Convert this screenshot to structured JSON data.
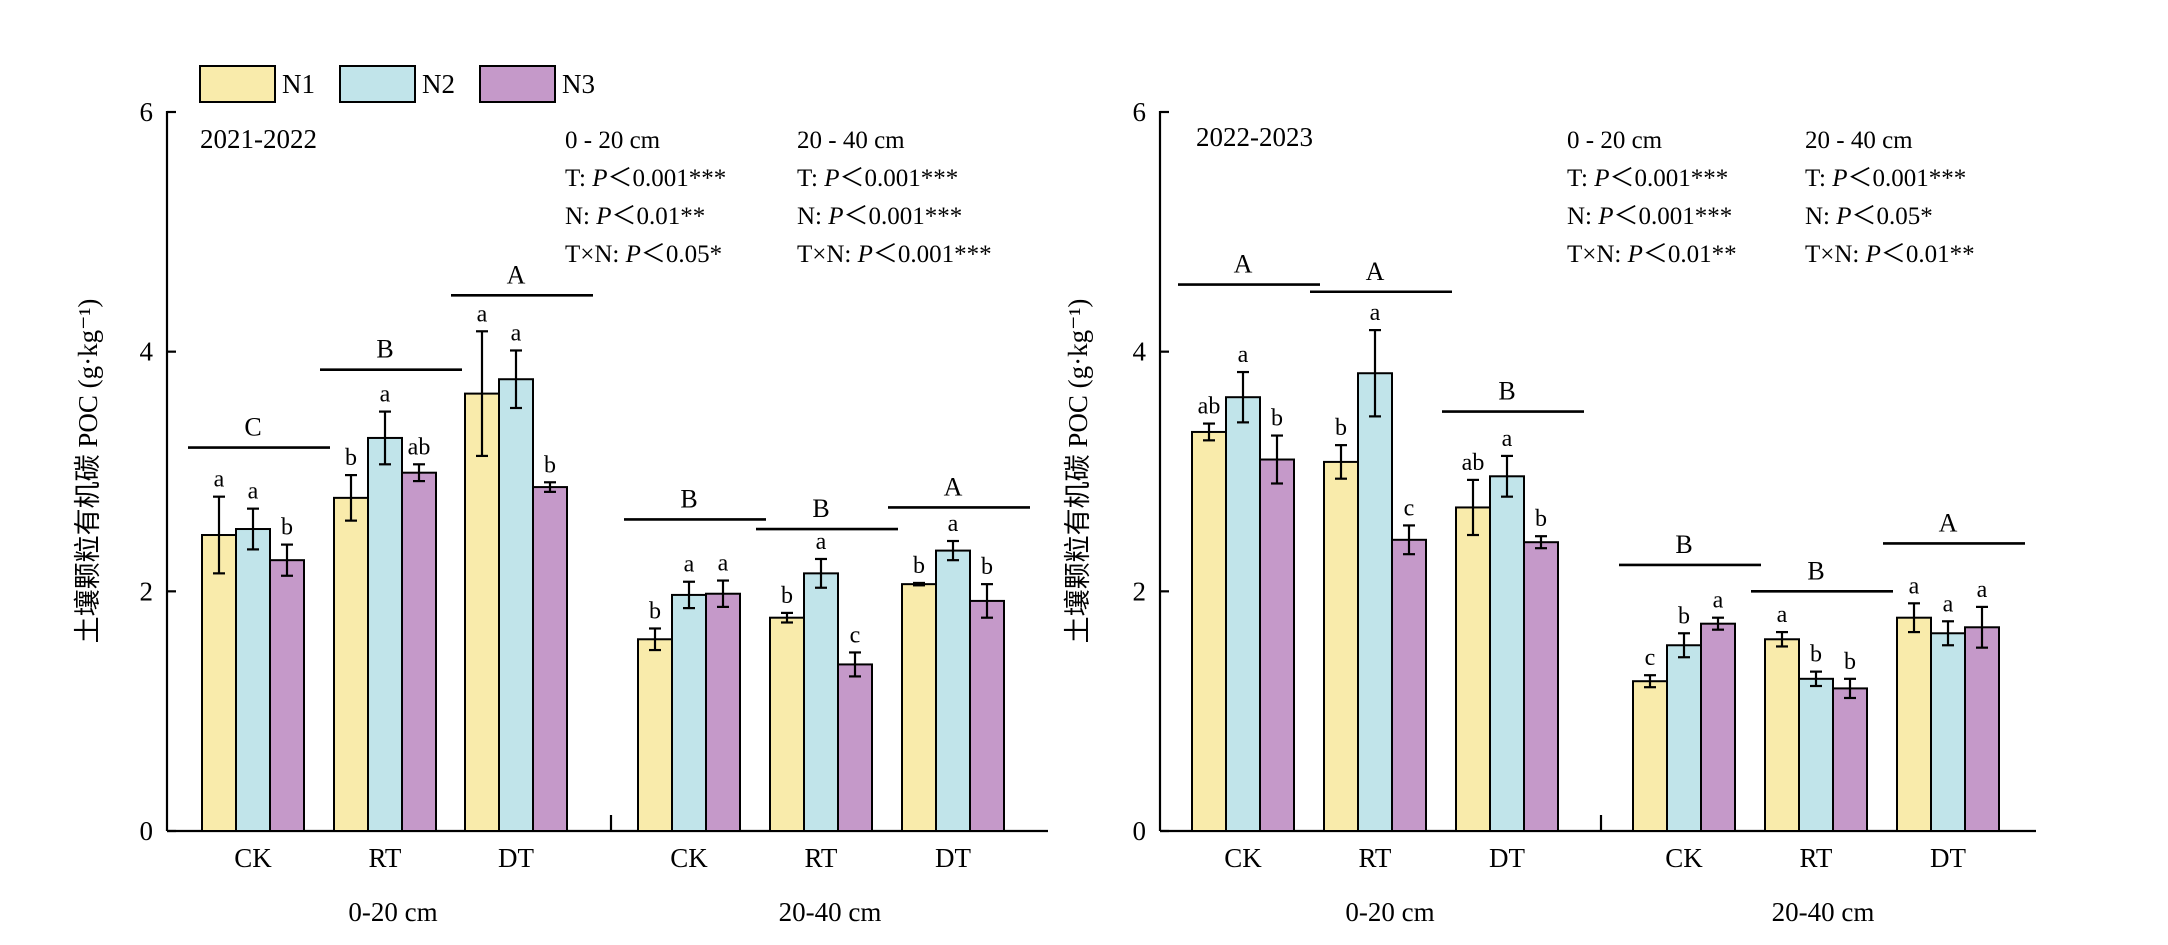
{
  "legend": [
    {
      "name": "N1",
      "color": "#f9ebab"
    },
    {
      "name": "N2",
      "color": "#c1e4ea"
    },
    {
      "name": "N3",
      "color": "#c599c9"
    }
  ],
  "chart_data": [
    {
      "type": "bar",
      "panel_title": "2021-2022",
      "ylabel": "土壤颗粒有机碳 POC (g·kg⁻¹)",
      "ylim": [
        0,
        6
      ],
      "yticks": [
        "0",
        "2",
        "4",
        "6"
      ],
      "groups": [
        "0-20 cm",
        "20-40 cm"
      ],
      "categories": [
        "CK",
        "RT",
        "DT",
        "CK",
        "RT",
        "DT"
      ],
      "series": [
        {
          "name": "N1",
          "values": [
            2.47,
            2.78,
            3.65,
            1.6,
            1.78,
            2.06
          ],
          "errors": [
            0.32,
            0.19,
            0.52,
            0.09,
            0.04,
            0.01
          ],
          "letters": [
            "a",
            "b",
            "a",
            "b",
            "b",
            "b"
          ]
        },
        {
          "name": "N2",
          "values": [
            2.52,
            3.28,
            3.77,
            1.97,
            2.15,
            2.34
          ],
          "errors": [
            0.17,
            0.22,
            0.24,
            0.11,
            0.12,
            0.08
          ],
          "letters": [
            "a",
            "a",
            "a",
            "a",
            "a",
            "a"
          ]
        },
        {
          "name": "N3",
          "values": [
            2.26,
            2.99,
            2.87,
            1.98,
            1.39,
            1.92
          ],
          "errors": [
            0.13,
            0.07,
            0.04,
            0.11,
            0.1,
            0.14
          ],
          "letters": [
            "b",
            "ab",
            "b",
            "a",
            "c",
            "b"
          ]
        }
      ],
      "group_letters": [
        "C",
        "B",
        "A",
        "B",
        "B",
        "A"
      ],
      "group_letter_y": [
        3.2,
        3.85,
        4.47,
        2.6,
        2.52,
        2.7
      ],
      "stats": [
        {
          "header": "0 - 20 cm",
          "lines": [
            [
              "T: ",
              "P",
              "＜0.001***"
            ],
            [
              "N: ",
              "P",
              "＜0.01**"
            ],
            [
              "T×N: ",
              "P",
              "＜0.05*"
            ]
          ]
        },
        {
          "header": "20 - 40 cm",
          "lines": [
            [
              "T: ",
              "P",
              "＜0.001***"
            ],
            [
              "N: ",
              "P",
              "＜0.001***"
            ],
            [
              "T×N: ",
              "P",
              "＜0.001***"
            ]
          ]
        }
      ]
    },
    {
      "type": "bar",
      "panel_title": "2022-2023",
      "ylabel": "土壤颗粒有机碳 POC (g·kg⁻¹)",
      "ylim": [
        0,
        6
      ],
      "yticks": [
        "0",
        "2",
        "4",
        "6"
      ],
      "groups": [
        "0-20 cm",
        "20-40 cm"
      ],
      "categories": [
        "CK",
        "RT",
        "DT",
        "CK",
        "RT",
        "DT"
      ],
      "series": [
        {
          "name": "N1",
          "values": [
            3.33,
            3.08,
            2.7,
            1.25,
            1.6,
            1.78
          ],
          "errors": [
            0.07,
            0.14,
            0.23,
            0.05,
            0.06,
            0.12
          ],
          "letters": [
            "ab",
            "b",
            "ab",
            "c",
            "a",
            "a"
          ]
        },
        {
          "name": "N2",
          "values": [
            3.62,
            3.82,
            2.96,
            1.55,
            1.27,
            1.65
          ],
          "errors": [
            0.21,
            0.36,
            0.17,
            0.1,
            0.06,
            0.1
          ],
          "letters": [
            "a",
            "a",
            "a",
            "b",
            "b",
            "a"
          ]
        },
        {
          "name": "N3",
          "values": [
            3.1,
            2.43,
            2.41,
            1.73,
            1.19,
            1.7
          ],
          "errors": [
            0.2,
            0.12,
            0.05,
            0.05,
            0.08,
            0.17
          ],
          "letters": [
            "b",
            "c",
            "b",
            "a",
            "b",
            "a"
          ]
        }
      ],
      "group_letters": [
        "A",
        "A",
        "B",
        "B",
        "B",
        "A"
      ],
      "group_letter_y": [
        4.56,
        4.5,
        3.5,
        2.22,
        2.0,
        2.4
      ],
      "stats": [
        {
          "header": "0 - 20 cm",
          "lines": [
            [
              "T: ",
              "P",
              "＜0.001***"
            ],
            [
              "N: ",
              "P",
              "＜0.001***"
            ],
            [
              "T×N: ",
              "P",
              "＜0.01**"
            ]
          ]
        },
        {
          "header": "20 - 40 cm",
          "lines": [
            [
              "T: ",
              "P",
              "＜0.001***"
            ],
            [
              "N: ",
              "P",
              "＜0.05*"
            ],
            [
              "T×N: ",
              "P",
              "＜0.01**"
            ]
          ]
        }
      ]
    }
  ]
}
